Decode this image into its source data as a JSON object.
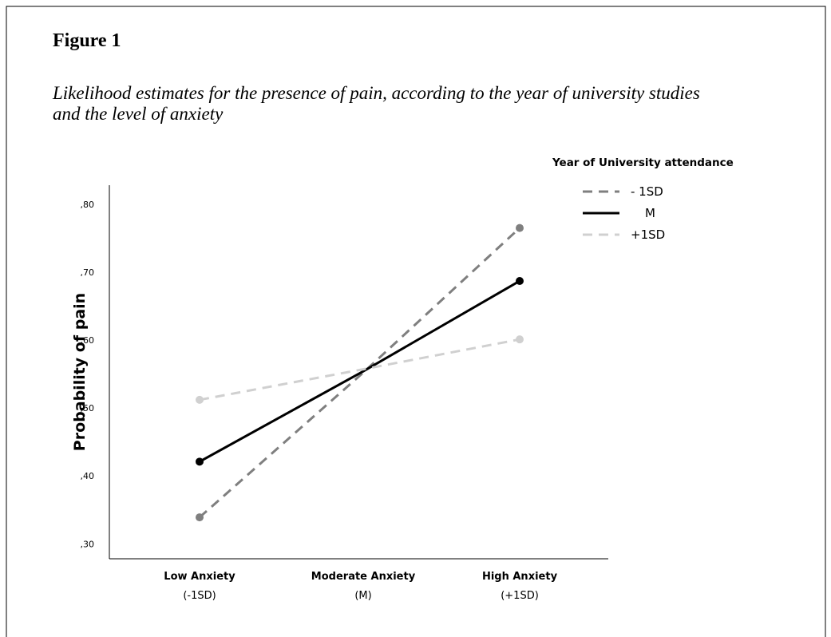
{
  "figure_label": "Figure 1",
  "caption": [
    "Likelihood estimates for the presence of pain, according to the year of university studies",
    "and the level of anxiety"
  ],
  "chart_data": {
    "type": "line",
    "y_label": "Probability of pain",
    "legend_title": "Year of University attendance",
    "legend": "upper right",
    "categories": [
      [
        "Low Anxiety",
        "(-1SD)"
      ],
      [
        "Moderate Anxiety",
        "(M)"
      ],
      [
        "High Anxiety",
        "(+1SD)"
      ]
    ],
    "series": [
      {
        "name": "- 1SD",
        "color": "#7f7f7f",
        "dashed": true,
        "values": [
          0.339,
          0.552,
          0.765
        ]
      },
      {
        "name": "M",
        "color": "#000000",
        "dashed": false,
        "values": [
          0.421,
          0.554,
          0.687
        ]
      },
      {
        "name": "+1SD",
        "color": "#d0d0d0",
        "dashed": true,
        "values": [
          0.512,
          0.557,
          0.601
        ]
      }
    ],
    "ylim": [
      0.278,
      0.828
    ],
    "yticks": [
      {
        "value": 0.3,
        "label": ",30"
      },
      {
        "value": 0.4,
        "label": ",40"
      },
      {
        "value": 0.5,
        "label": ",50"
      },
      {
        "value": 0.6,
        "label": ",60"
      },
      {
        "value": 0.7,
        "label": ",70"
      },
      {
        "value": 0.8,
        "label": ",80"
      }
    ],
    "grid": false
  }
}
